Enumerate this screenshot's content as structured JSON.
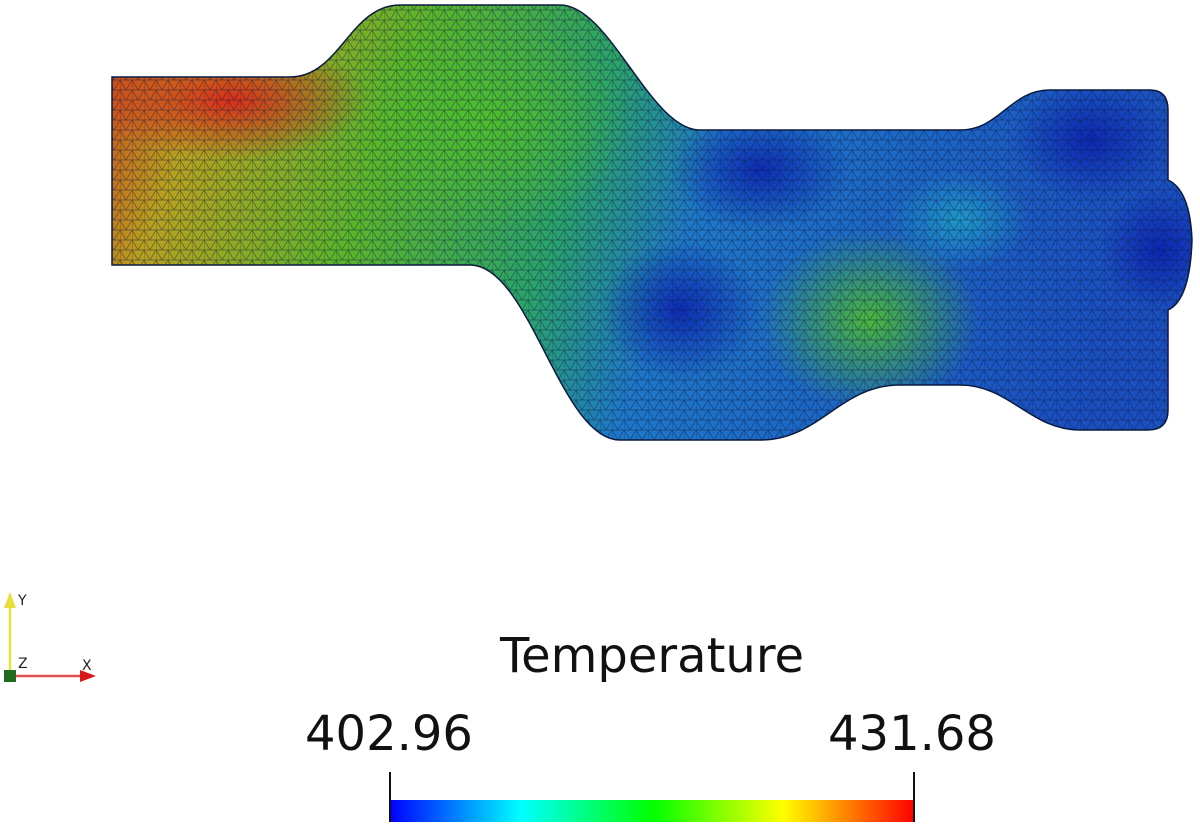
{
  "colorbar": {
    "title": "Temperature",
    "min": 402.96,
    "max": 431.68
  },
  "axes": {
    "x": "X",
    "y": "Y",
    "z": "Z"
  }
}
